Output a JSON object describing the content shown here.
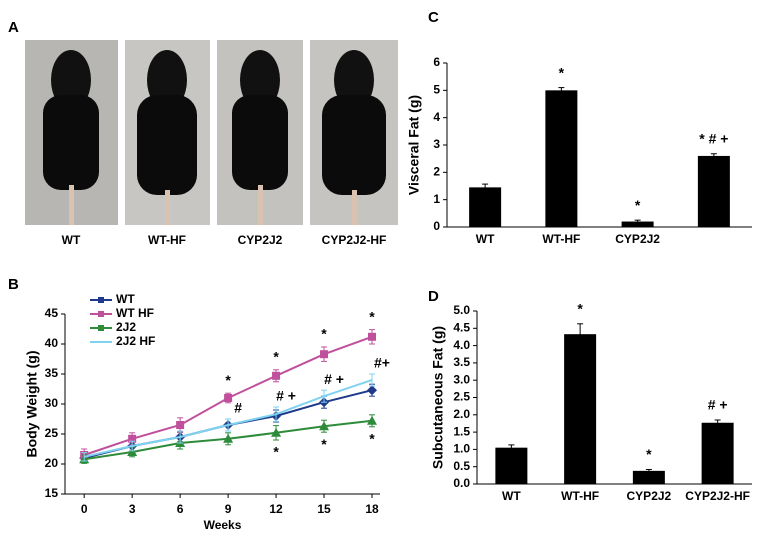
{
  "panel_a": {
    "label": "A",
    "images": [
      "WT",
      "WT-HF",
      "CYP2J2",
      "CYP2J2-HF"
    ]
  },
  "chart_data": [
    {
      "type": "line",
      "label": "B",
      "xlabel": "Weeks",
      "ylabel": "Body Weight (g)",
      "x": [
        0,
        3,
        6,
        9,
        12,
        15,
        18
      ],
      "xlim": [
        -1.2,
        18.5
      ],
      "xticks": [
        0,
        3,
        6,
        9,
        12,
        15,
        18
      ],
      "ylim": [
        15,
        45
      ],
      "yticks": [
        15,
        20,
        25,
        30,
        35,
        40,
        45
      ],
      "legend": "upper left",
      "series": [
        {
          "name": "WT",
          "color": "#1f3a8a",
          "marker": "diamond",
          "values": [
            21,
            23,
            24.5,
            26.5,
            28,
            30.3,
            32.3
          ],
          "errors": [
            0.7,
            0.8,
            0.8,
            1,
            1,
            1,
            1
          ]
        },
        {
          "name": "WT HF",
          "color": "#c0509c",
          "marker": "square",
          "annotation_side": "above",
          "values": [
            21.5,
            24.2,
            26.5,
            31,
            34.7,
            38.3,
            41.2
          ],
          "errors": [
            1,
            1,
            1.2,
            0.8,
            1,
            1.2,
            1.2
          ],
          "annotations": [
            null,
            null,
            null,
            "*",
            "*",
            "*",
            "*"
          ]
        },
        {
          "name": "2J2",
          "color": "#2e8b3a",
          "marker": "triangle",
          "annotation_side": "below",
          "values": [
            20.8,
            22,
            23.5,
            24.2,
            25.2,
            26.3,
            27.2
          ],
          "errors": [
            0.7,
            0.8,
            1,
            1,
            1.2,
            1,
            1
          ],
          "annotations": [
            null,
            null,
            null,
            null,
            "*",
            "*",
            "*"
          ]
        },
        {
          "name": "2J2 HF",
          "color": "#7fd3f0",
          "marker": "none",
          "annotation_side": "right",
          "values": [
            21.2,
            23,
            24.5,
            26.5,
            28.3,
            31.3,
            34
          ],
          "errors": [
            0.7,
            0.8,
            1,
            1,
            1.2,
            1,
            1
          ],
          "annotations": [
            null,
            null,
            null,
            "#",
            "# +",
            "# +",
            "#+"
          ]
        }
      ]
    },
    {
      "type": "bar",
      "label": "C",
      "ylabel": "Visceral Fat (g)",
      "color": "#000000",
      "categories": [
        "WT",
        "WT-HF",
        "CYP2J2",
        null
      ],
      "values": [
        1.45,
        5.0,
        0.2,
        2.6
      ],
      "errors": [
        0.12,
        0.1,
        0.05,
        0.08
      ],
      "annotations": [
        null,
        "*",
        "*",
        "* # +"
      ],
      "ylim": [
        0,
        6
      ],
      "yticks": [
        0,
        1,
        2,
        3,
        4,
        5,
        6
      ]
    },
    {
      "type": "bar",
      "label": "D",
      "ylabel": "Subcutaneous Fat (g)",
      "color": "#000000",
      "categories": [
        "WT",
        "WT-HF",
        "CYP2J2",
        "CYP2J2-HF"
      ],
      "values": [
        1.05,
        4.33,
        0.38,
        1.77
      ],
      "errors": [
        0.08,
        0.3,
        0.04,
        0.08
      ],
      "annotations": [
        null,
        "*",
        "*",
        "# +"
      ],
      "ylim": [
        0,
        5
      ],
      "yticks": [
        {
          "value": 0,
          "label": "0.0"
        },
        0.5,
        {
          "value": 1,
          "label": "1.0"
        },
        1.5,
        {
          "value": 2,
          "label": "2.0"
        },
        2.5,
        {
          "value": 3,
          "label": "3.0"
        },
        3.5,
        {
          "value": 4,
          "label": "4.0"
        },
        4.5,
        {
          "value": 5,
          "label": "5.0"
        }
      ]
    }
  ]
}
